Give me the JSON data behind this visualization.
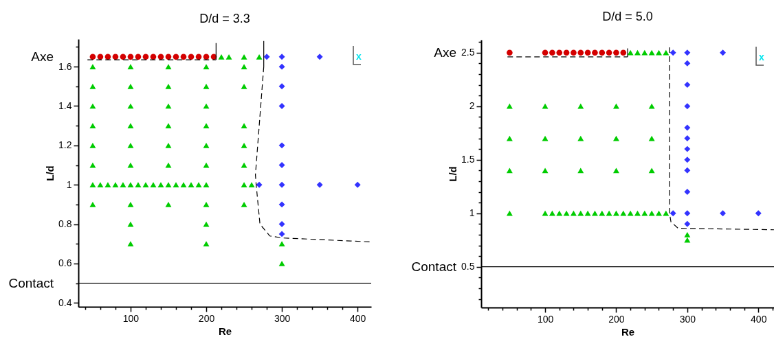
{
  "chart_data": [
    {
      "type": "scatter",
      "title": "D/d = 3.3",
      "xlabel": "Re",
      "ylabel": "L/d",
      "xlim": [
        31,
        418
      ],
      "ylim": [
        0.38,
        1.74
      ],
      "xticks": [
        {
          "value": 40,
          "label": null
        },
        {
          "value": 60,
          "label": null
        },
        {
          "value": 80,
          "label": null
        },
        100,
        {
          "value": 120,
          "label": null
        },
        {
          "value": 140,
          "label": null
        },
        {
          "value": 160,
          "label": null
        },
        {
          "value": 180,
          "label": null
        },
        200,
        {
          "value": 220,
          "label": null
        },
        {
          "value": 240,
          "label": null
        },
        {
          "value": 260,
          "label": null
        },
        {
          "value": 280,
          "label": null
        },
        300,
        {
          "value": 320,
          "label": null
        },
        {
          "value": 340,
          "label": null
        },
        {
          "value": 360,
          "label": null
        },
        {
          "value": 380,
          "label": null
        },
        400
      ],
      "yticks": [
        0.4,
        {
          "value": 0.5,
          "label": null
        },
        0.6,
        {
          "value": 0.7,
          "label": null
        },
        0.8,
        {
          "value": 0.9,
          "label": null
        },
        1,
        {
          "value": 1.1,
          "label": null
        },
        1.2,
        {
          "value": 1.3,
          "label": null
        },
        1.4,
        {
          "value": 1.5,
          "label": null
        },
        1.6,
        {
          "value": 1.7,
          "label": null
        }
      ],
      "ref_lines": [
        {
          "axis": "y",
          "value": 0.5,
          "label": "Contact",
          "color": "#000000",
          "line_style": "solid"
        }
      ],
      "annotations": [
        "Axe",
        "x"
      ],
      "series": [
        {
          "type": "scatter",
          "marker": "circle",
          "color": "#d40000",
          "x": [
            50,
            60,
            70,
            80,
            90,
            100,
            110,
            120,
            130,
            140,
            150,
            160,
            170,
            180,
            190,
            200,
            210
          ],
          "values": [
            1.65,
            1.65,
            1.65,
            1.65,
            1.65,
            1.65,
            1.65,
            1.65,
            1.65,
            1.65,
            1.65,
            1.65,
            1.65,
            1.65,
            1.65,
            1.65,
            1.65
          ]
        },
        {
          "type": "scatter",
          "marker": "triangle",
          "color": "#00cc00",
          "x": [
            220,
            230,
            250,
            270,
            50,
            100,
            150,
            200,
            250,
            50,
            100,
            150,
            200,
            250,
            50,
            100,
            150,
            200,
            50,
            100,
            150,
            200,
            250,
            50,
            100,
            150,
            200,
            250,
            50,
            100,
            150,
            200,
            250,
            50,
            60,
            70,
            80,
            90,
            100,
            110,
            120,
            130,
            140,
            150,
            160,
            170,
            180,
            190,
            200,
            250,
            260,
            50,
            100,
            150,
            200,
            250,
            100,
            200,
            100,
            200,
            300,
            300
          ],
          "values": [
            1.65,
            1.65,
            1.65,
            1.65,
            1.6,
            1.6,
            1.6,
            1.6,
            1.6,
            1.5,
            1.5,
            1.5,
            1.5,
            1.5,
            1.4,
            1.4,
            1.4,
            1.4,
            1.3,
            1.3,
            1.3,
            1.3,
            1.3,
            1.2,
            1.2,
            1.2,
            1.2,
            1.2,
            1.1,
            1.1,
            1.1,
            1.1,
            1.1,
            1,
            1,
            1,
            1,
            1,
            1,
            1,
            1,
            1,
            1,
            1,
            1,
            1,
            1,
            1,
            1,
            1,
            1,
            0.9,
            0.9,
            0.9,
            0.9,
            0.9,
            0.8,
            0.8,
            0.7,
            0.7,
            0.7,
            0.6
          ]
        },
        {
          "type": "scatter",
          "marker": "diamond",
          "color": "#3333ff",
          "x": [
            280,
            300,
            350,
            300,
            300,
            300,
            300,
            300,
            270,
            300,
            350,
            400,
            300,
            300,
            300
          ],
          "values": [
            1.65,
            1.65,
            1.65,
            1.6,
            1.5,
            1.4,
            1.2,
            1.1,
            1,
            1,
            1,
            1,
            0.9,
            0.8,
            0.75
          ]
        },
        {
          "type": "line",
          "line_style": "dashed",
          "color": "#000000",
          "x": [
            43,
            213
          ],
          "values": [
            1.635,
            1.635
          ]
        },
        {
          "type": "line",
          "line_style": "solid",
          "color": "#000000",
          "x": [
            213,
            213
          ],
          "values": [
            1.635,
            1.72
          ]
        },
        {
          "type": "line",
          "line_style": "solid",
          "color": "#000000",
          "x": [
            276,
            276
          ],
          "values": [
            1.73,
            1.6
          ]
        },
        {
          "type": "line",
          "line_style": "dashed",
          "color": "#000000",
          "x": [
            276,
            265,
            266,
            271,
            284,
            300,
            416
          ],
          "values": [
            1.6,
            1.05,
            1,
            0.8,
            0.74,
            0.73,
            0.71
          ]
        }
      ]
    },
    {
      "type": "scatter",
      "title": "D/d = 5.0",
      "xlabel": "Re",
      "ylabel": "L/d",
      "xlim": [
        10,
        422
      ],
      "ylim": [
        0.12,
        2.62
      ],
      "xticks": [
        {
          "value": 20,
          "label": null
        },
        {
          "value": 40,
          "label": null
        },
        {
          "value": 60,
          "label": null
        },
        {
          "value": 80,
          "label": null
        },
        100,
        {
          "value": 120,
          "label": null
        },
        {
          "value": 140,
          "label": null
        },
        {
          "value": 160,
          "label": null
        },
        {
          "value": 180,
          "label": null
        },
        200,
        {
          "value": 220,
          "label": null
        },
        {
          "value": 240,
          "label": null
        },
        {
          "value": 260,
          "label": null
        },
        {
          "value": 280,
          "label": null
        },
        300,
        {
          "value": 320,
          "label": null
        },
        {
          "value": 340,
          "label": null
        },
        {
          "value": 360,
          "label": null
        },
        {
          "value": 380,
          "label": null
        },
        400,
        {
          "value": 420,
          "label": null
        }
      ],
      "yticks": [
        {
          "value": 0.2,
          "label": null
        },
        {
          "value": 0.3,
          "label": null
        },
        {
          "value": 0.4,
          "label": null
        },
        0.5,
        {
          "value": 0.6,
          "label": null
        },
        {
          "value": 0.7,
          "label": null
        },
        {
          "value": 0.8,
          "label": null
        },
        {
          "value": 0.9,
          "label": null
        },
        1,
        {
          "value": 1.1,
          "label": null
        },
        {
          "value": 1.2,
          "label": null
        },
        {
          "value": 1.3,
          "label": null
        },
        {
          "value": 1.4,
          "label": null
        },
        1.5,
        {
          "value": 1.6,
          "label": null
        },
        {
          "value": 1.7,
          "label": null
        },
        {
          "value": 1.8,
          "label": null
        },
        {
          "value": 1.9,
          "label": null
        },
        2,
        {
          "value": 2.1,
          "label": null
        },
        {
          "value": 2.2,
          "label": null
        },
        {
          "value": 2.3,
          "label": null
        },
        {
          "value": 2.4,
          "label": null
        },
        2.5,
        {
          "value": 2.6,
          "label": null
        }
      ],
      "ref_lines": [
        {
          "axis": "y",
          "value": 0.5,
          "label": "Contact",
          "color": "#000000",
          "line_style": "solid"
        }
      ],
      "annotations": [
        "Axe",
        "x"
      ],
      "series": [
        {
          "type": "scatter",
          "marker": "circle",
          "color": "#d40000",
          "x": [
            50,
            100,
            110,
            120,
            130,
            140,
            150,
            160,
            170,
            180,
            190,
            200,
            210
          ],
          "values": [
            2.5,
            2.5,
            2.5,
            2.5,
            2.5,
            2.5,
            2.5,
            2.5,
            2.5,
            2.5,
            2.5,
            2.5,
            2.5
          ]
        },
        {
          "type": "scatter",
          "marker": "triangle",
          "color": "#00cc00",
          "x": [
            220,
            230,
            240,
            250,
            260,
            270,
            50,
            100,
            150,
            200,
            250,
            50,
            100,
            150,
            200,
            250,
            50,
            100,
            150,
            200,
            250,
            50,
            100,
            110,
            120,
            130,
            140,
            150,
            160,
            170,
            180,
            190,
            200,
            210,
            220,
            230,
            240,
            250,
            260,
            270,
            300,
            300
          ],
          "values": [
            2.5,
            2.5,
            2.5,
            2.5,
            2.5,
            2.5,
            2,
            2,
            2,
            2,
            2,
            1.7,
            1.7,
            1.7,
            1.7,
            1.7,
            1.4,
            1.4,
            1.4,
            1.4,
            1.4,
            1,
            1,
            1,
            1,
            1,
            1,
            1,
            1,
            1,
            1,
            1,
            1,
            1,
            1,
            1,
            1,
            1,
            1,
            1,
            0.8,
            0.75
          ]
        },
        {
          "type": "scatter",
          "marker": "diamond",
          "color": "#3333ff",
          "x": [
            280,
            300,
            350,
            300,
            300,
            300,
            300,
            300,
            300,
            300,
            300,
            300,
            280,
            300,
            350,
            400,
            300
          ],
          "values": [
            2.5,
            2.5,
            2.5,
            2.4,
            2.2,
            2,
            1.8,
            1.7,
            1.6,
            1.5,
            1.4,
            1.2,
            1,
            1,
            1,
            1,
            0.9
          ]
        },
        {
          "type": "line",
          "line_style": "dashed",
          "color": "#000000",
          "x": [
            47,
            216
          ],
          "values": [
            2.46,
            2.46
          ]
        },
        {
          "type": "line",
          "line_style": "solid",
          "color": "#000000",
          "x": [
            216,
            216
          ],
          "values": [
            2.46,
            2.54
          ]
        },
        {
          "type": "line",
          "line_style": "dashed",
          "color": "#000000",
          "x": [
            275,
            275,
            277,
            287,
            422
          ],
          "values": [
            2.55,
            1,
            0.92,
            0.86,
            0.846
          ]
        }
      ]
    }
  ]
}
